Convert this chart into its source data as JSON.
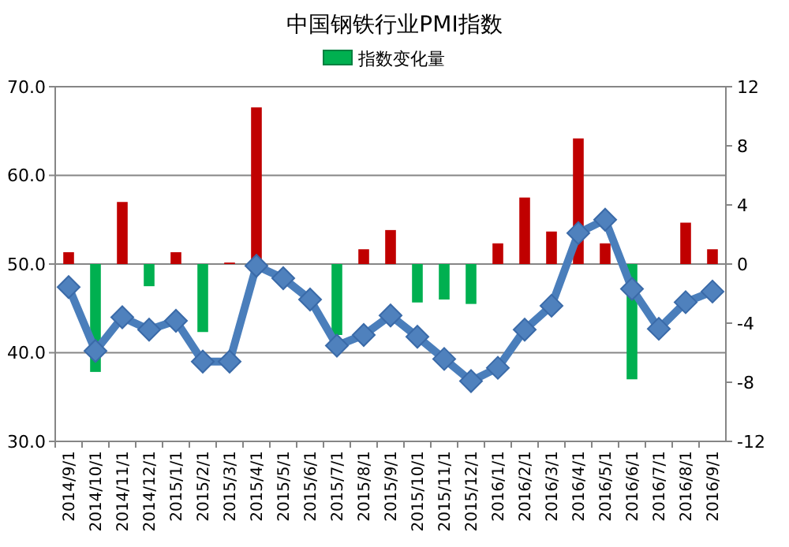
{
  "chart_data": {
    "type": "bar",
    "title": "中国钢铁行业PMI指数",
    "categories": [
      "2014/9/1",
      "2014/10/1",
      "2014/11/1",
      "2014/12/1",
      "2015/1/1",
      "2015/2/1",
      "2015/3/1",
      "2015/4/1",
      "2015/5/1",
      "2015/6/1",
      "2015/7/1",
      "2015/8/1",
      "2015/9/1",
      "2015/10/1",
      "2015/11/1",
      "2015/12/1",
      "2016/1/1",
      "2016/2/1",
      "2016/3/1",
      "2016/4/1",
      "2016/5/1",
      "2016/6/1",
      "2016/7/1",
      "2016/8/1",
      "2016/9/1"
    ],
    "series": [
      {
        "name": "指数变化量",
        "axis": "y2",
        "color": "#00b050",
        "colors": [
          "#c00000",
          "#00b050",
          "#c00000",
          "#00b050",
          "#c00000",
          "#00b050",
          "#c00000",
          "#c00000",
          null,
          null,
          "#00b050",
          "#c00000",
          "#c00000",
          "#00b050",
          "#00b050",
          "#00b050",
          "#c00000",
          "#c00000",
          "#c00000",
          "#c00000",
          "#c00000",
          "#00b050",
          null,
          "#c00000",
          "#c00000"
        ],
        "values": [
          0.8,
          -7.3,
          4.2,
          -1.5,
          0.8,
          -4.6,
          0.1,
          10.6,
          null,
          null,
          -4.8,
          1.0,
          2.3,
          -2.6,
          -2.4,
          -2.7,
          1.4,
          4.5,
          2.2,
          8.5,
          1.4,
          -7.8,
          null,
          2.8,
          1.0
        ]
      },
      {
        "type": "line",
        "axis": "y",
        "color": "#4a7ebb",
        "marker": "diamond",
        "values": [
          47.4,
          40.2,
          44.0,
          42.6,
          43.6,
          39.0,
          39.0,
          49.8,
          48.4,
          46.0,
          40.8,
          42.0,
          44.2,
          41.8,
          39.3,
          36.8,
          38.3,
          42.6,
          45.3,
          53.5,
          55.0,
          47.2,
          42.7,
          45.7,
          46.9
        ]
      }
    ],
    "ylim": [
      30,
      70
    ],
    "yticks": [
      {
        "value": 30,
        "label": "30.0"
      },
      {
        "value": 40,
        "label": "40.0"
      },
      {
        "value": 50,
        "label": "50.0"
      },
      {
        "value": 60,
        "label": "60.0"
      },
      {
        "value": 70,
        "label": "70.0"
      }
    ],
    "y2lim": [
      -12,
      12
    ],
    "y2ticks": [
      -12,
      -8,
      -4,
      0,
      4,
      8,
      12
    ],
    "grid": "y",
    "legend": "top"
  }
}
